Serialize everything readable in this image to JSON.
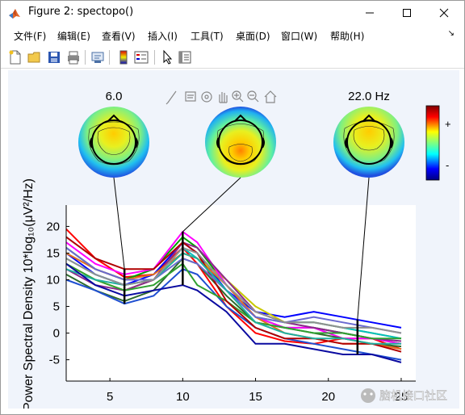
{
  "window": {
    "title": "Figure 2: spectopo()"
  },
  "menu": [
    "文件(F)",
    "编辑(E)",
    "查看(V)",
    "插入(I)",
    "工具(T)",
    "桌面(D)",
    "窗口(W)",
    "帮助(H)"
  ],
  "toolbar_icons": [
    "new-figure-icon",
    "open-icon",
    "save-icon",
    "print-icon",
    "link-icon",
    "colorbar-icon",
    "legend-icon",
    "cursor-icon",
    "property-editor-icon"
  ],
  "axes_toolbar_icons": [
    "brush-icon",
    "data-tip-icon",
    "rotate-icon",
    "pan-icon",
    "zoom-in-icon",
    "zoom-out-icon",
    "home-icon"
  ],
  "topo_labels": {
    "left": "6.0",
    "right": "22.0 Hz"
  },
  "colorbar": {
    "plus": "+",
    "minus": "-"
  },
  "watermark": "脑机接口社区",
  "chart_data": {
    "type": "line",
    "ylabel": "Power Spectral Density 10*log₁₀(μV²/Hz)",
    "xlabel": "",
    "xlim": [
      2,
      26
    ],
    "ylim": [
      -9,
      24
    ],
    "xticks": [
      5,
      10,
      15,
      20,
      25
    ],
    "yticks": [
      -5,
      0,
      5,
      10,
      15,
      20
    ],
    "xtick_labels": [
      "5",
      "10",
      "15",
      "20",
      "25"
    ],
    "ytick_labels": [
      "-5",
      "0",
      "5",
      "10",
      "15",
      "20"
    ],
    "grid": false,
    "markers": [
      6,
      10,
      22
    ],
    "x": [
      2,
      4,
      6,
      8,
      10,
      11,
      13,
      15,
      17,
      19,
      21,
      23,
      25
    ],
    "series": [
      {
        "color": "#ff0000",
        "values": [
          19.5,
          14,
          10.5,
          11,
          16,
          13,
          5,
          0,
          -1.5,
          -2,
          -1,
          -1,
          -3
        ]
      },
      {
        "color": "#0000ff",
        "values": [
          15,
          11,
          9,
          11,
          17,
          15,
          8,
          4,
          3,
          4,
          3,
          2,
          1
        ]
      },
      {
        "color": "#00a000",
        "values": [
          16,
          12,
          10,
          12,
          18,
          16,
          9,
          3,
          1,
          1,
          0,
          -1,
          -2
        ]
      },
      {
        "color": "#c8c800",
        "values": [
          13,
          10,
          8,
          10,
          15,
          14,
          10,
          5,
          2,
          2,
          1,
          0,
          -1
        ]
      },
      {
        "color": "#ff00ff",
        "values": [
          17,
          13,
          11,
          12,
          19,
          17,
          9,
          3,
          1,
          1,
          -1,
          -1,
          -2
        ]
      },
      {
        "color": "#00c0c0",
        "values": [
          14,
          11,
          9,
          10,
          16,
          14,
          8,
          3,
          2,
          2,
          1,
          0,
          -1
        ]
      },
      {
        "color": "#8b2a8b",
        "values": [
          12,
          9,
          8,
          10,
          17,
          16,
          10,
          4,
          2,
          1,
          0,
          -1,
          -1.5
        ]
      },
      {
        "color": "#2e6b2e",
        "values": [
          11,
          8,
          6,
          8,
          14,
          13,
          7,
          2,
          1,
          0,
          -1,
          -2,
          -2.5
        ]
      },
      {
        "color": "#1f4fd1",
        "values": [
          10,
          8,
          5.5,
          7,
          12,
          11,
          5,
          1,
          -1,
          -2,
          -3,
          -4,
          -5
        ]
      },
      {
        "color": "#e07020",
        "values": [
          15,
          12,
          10,
          11,
          15,
          14,
          9,
          3,
          0,
          -1,
          -2,
          -2,
          -3
        ]
      },
      {
        "color": "#30a030",
        "values": [
          13,
          10,
          8,
          9,
          13,
          9,
          6,
          2,
          1,
          0,
          0,
          -1,
          -1
        ]
      },
      {
        "color": "#b00000",
        "values": [
          18,
          14,
          12,
          12,
          17,
          15,
          6,
          1,
          -1,
          -1,
          -2,
          -2,
          -3.5
        ]
      },
      {
        "color": "#6a6ad0",
        "values": [
          16,
          12,
          10,
          10,
          14,
          13,
          8,
          3,
          2,
          3,
          2,
          1,
          0
        ]
      },
      {
        "color": "#20b0a0",
        "values": [
          12,
          10,
          9,
          10,
          15,
          14,
          8,
          2,
          0,
          -1,
          -1,
          -2,
          -2
        ]
      },
      {
        "color": "#909090",
        "values": [
          14,
          11,
          9,
          10,
          16,
          15,
          9,
          4,
          2,
          2,
          1,
          1,
          0
        ]
      },
      {
        "color": "#0a0aa0",
        "values": [
          13,
          9,
          7,
          8,
          9,
          8,
          4,
          -2,
          -2,
          -3,
          -4,
          -4,
          -5.5
        ]
      }
    ]
  }
}
